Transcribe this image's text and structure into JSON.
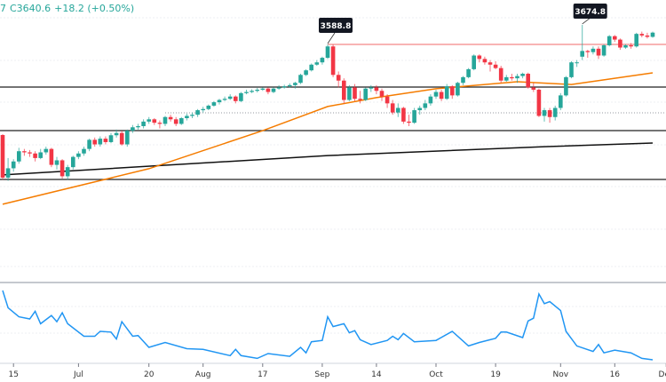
{
  "legend": {
    "prefix": "7",
    "close": "C3640.6",
    "change": "+18.2 (+0.50%)"
  },
  "colors": {
    "up": "#26a69a",
    "down": "#f23645",
    "sma_fast": "#f57c00",
    "sma_slow": "#111111",
    "oscillator": "#2196f3",
    "resistance": "#f06a6a",
    "level": "#222222"
  },
  "chart_data": {
    "type": "candlestick",
    "ylim": [
      2880,
      3700
    ],
    "annotations": [
      {
        "label": "3588.8",
        "index": 60,
        "price": 3588.8
      },
      {
        "label": "3674.8",
        "index": 107,
        "price": 3674.8
      }
    ],
    "x_ticks": [
      {
        "label": "15",
        "index": 2
      },
      {
        "label": "Jul",
        "index": 14
      },
      {
        "label": "20",
        "index": 27
      },
      {
        "label": "Aug",
        "index": 37
      },
      {
        "label": "17",
        "index": 48
      },
      {
        "label": "Sep",
        "index": 59
      },
      {
        "label": "14",
        "index": 69
      },
      {
        "label": "Oct",
        "index": 80
      },
      {
        "label": "19",
        "index": 91
      },
      {
        "label": "Nov",
        "index": 103
      },
      {
        "label": "16",
        "index": 113
      },
      {
        "label": "Dec",
        "index": 122.5
      }
    ],
    "levels": [
      3401.6,
      3210.5,
      2996
    ],
    "resistance": {
      "price": 3588.8,
      "from_index": 60
    },
    "dotted_level": {
      "price": 3288.5,
      "from_index": 30
    },
    "ohlc": [
      [
        3191,
        3195,
        2995,
        3004
      ],
      [
        3004,
        3090,
        2990,
        3045
      ],
      [
        3045,
        3085,
        3030,
        3075
      ],
      [
        3075,
        3135,
        3065,
        3120
      ],
      [
        3120,
        3130,
        3100,
        3115
      ],
      [
        3115,
        3125,
        3095,
        3110
      ],
      [
        3110,
        3120,
        3075,
        3090
      ],
      [
        3090,
        3130,
        3085,
        3115
      ],
      [
        3115,
        3140,
        3105,
        3130
      ],
      [
        3130,
        3135,
        3050,
        3060
      ],
      [
        3060,
        3095,
        3040,
        3080
      ],
      [
        3080,
        3085,
        3000,
        3010
      ],
      [
        3010,
        3060,
        2995,
        3050
      ],
      [
        3050,
        3100,
        3040,
        3095
      ],
      [
        3095,
        3120,
        3085,
        3110
      ],
      [
        3110,
        3140,
        3100,
        3130
      ],
      [
        3130,
        3175,
        3120,
        3170
      ],
      [
        3170,
        3180,
        3140,
        3150
      ],
      [
        3150,
        3185,
        3140,
        3175
      ],
      [
        3175,
        3185,
        3150,
        3160
      ],
      [
        3160,
        3200,
        3155,
        3190
      ],
      [
        3190,
        3215,
        3180,
        3200
      ],
      [
        3200,
        3210,
        3145,
        3150
      ],
      [
        3150,
        3215,
        3140,
        3210
      ],
      [
        3210,
        3235,
        3200,
        3225
      ],
      [
        3225,
        3240,
        3215,
        3230
      ],
      [
        3230,
        3260,
        3220,
        3250
      ],
      [
        3250,
        3270,
        3240,
        3260
      ],
      [
        3260,
        3265,
        3235,
        3245
      ],
      [
        3245,
        3255,
        3220,
        3240
      ],
      [
        3240,
        3275,
        3230,
        3270
      ],
      [
        3270,
        3280,
        3250,
        3260
      ],
      [
        3260,
        3270,
        3230,
        3240
      ],
      [
        3240,
        3270,
        3235,
        3265
      ],
      [
        3265,
        3285,
        3255,
        3275
      ],
      [
        3275,
        3290,
        3265,
        3280
      ],
      [
        3280,
        3305,
        3270,
        3300
      ],
      [
        3300,
        3315,
        3290,
        3305
      ],
      [
        3305,
        3325,
        3300,
        3320
      ],
      [
        3320,
        3340,
        3315,
        3335
      ],
      [
        3335,
        3350,
        3325,
        3345
      ],
      [
        3345,
        3360,
        3340,
        3350
      ],
      [
        3350,
        3370,
        3345,
        3360
      ],
      [
        3360,
        3365,
        3330,
        3340
      ],
      [
        3340,
        3380,
        3335,
        3375
      ],
      [
        3375,
        3390,
        3370,
        3380
      ],
      [
        3380,
        3392,
        3375,
        3385
      ],
      [
        3385,
        3398,
        3378,
        3390
      ],
      [
        3390,
        3400,
        3385,
        3395
      ],
      [
        3395,
        3400,
        3370,
        3380
      ],
      [
        3380,
        3400,
        3375,
        3395
      ],
      [
        3395,
        3410,
        3390,
        3400
      ],
      [
        3400,
        3412,
        3395,
        3405
      ],
      [
        3405,
        3418,
        3400,
        3410
      ],
      [
        3410,
        3425,
        3395,
        3420
      ],
      [
        3420,
        3460,
        3415,
        3455
      ],
      [
        3455,
        3480,
        3450,
        3475
      ],
      [
        3475,
        3505,
        3470,
        3500
      ],
      [
        3500,
        3520,
        3495,
        3510
      ],
      [
        3510,
        3535,
        3500,
        3530
      ],
      [
        3530,
        3588.8,
        3525,
        3580
      ],
      [
        3580,
        3588,
        3445,
        3455
      ],
      [
        3455,
        3470,
        3400,
        3430
      ],
      [
        3430,
        3440,
        3330,
        3345
      ],
      [
        3345,
        3410,
        3340,
        3400
      ],
      [
        3400,
        3415,
        3340,
        3350
      ],
      [
        3350,
        3385,
        3330,
        3345
      ],
      [
        3345,
        3400,
        3340,
        3395
      ],
      [
        3395,
        3410,
        3380,
        3400
      ],
      [
        3400,
        3410,
        3370,
        3385
      ],
      [
        3385,
        3395,
        3340,
        3360
      ],
      [
        3360,
        3370,
        3310,
        3330
      ],
      [
        3330,
        3345,
        3280,
        3290
      ],
      [
        3290,
        3330,
        3270,
        3310
      ],
      [
        3310,
        3315,
        3240,
        3250
      ],
      [
        3250,
        3280,
        3230,
        3245
      ],
      [
        3245,
        3310,
        3240,
        3300
      ],
      [
        3300,
        3320,
        3280,
        3310
      ],
      [
        3310,
        3345,
        3300,
        3330
      ],
      [
        3330,
        3370,
        3320,
        3360
      ],
      [
        3360,
        3390,
        3350,
        3380
      ],
      [
        3380,
        3390,
        3340,
        3350
      ],
      [
        3350,
        3415,
        3345,
        3405
      ],
      [
        3405,
        3410,
        3350,
        3365
      ],
      [
        3365,
        3425,
        3360,
        3420
      ],
      [
        3420,
        3450,
        3410,
        3445
      ],
      [
        3445,
        3485,
        3440,
        3480
      ],
      [
        3480,
        3545,
        3475,
        3540
      ],
      [
        3540,
        3545,
        3510,
        3525
      ],
      [
        3525,
        3535,
        3500,
        3510
      ],
      [
        3510,
        3520,
        3470,
        3500
      ],
      [
        3500,
        3515,
        3480,
        3485
      ],
      [
        3485,
        3495,
        3420,
        3430
      ],
      [
        3430,
        3455,
        3425,
        3445
      ],
      [
        3445,
        3460,
        3430,
        3440
      ],
      [
        3440,
        3460,
        3420,
        3450
      ],
      [
        3450,
        3465,
        3440,
        3460
      ],
      [
        3460,
        3465,
        3395,
        3400
      ],
      [
        3400,
        3420,
        3380,
        3390
      ],
      [
        3390,
        3395,
        3270,
        3275
      ],
      [
        3275,
        3310,
        3250,
        3300
      ],
      [
        3300,
        3310,
        3245,
        3270
      ],
      [
        3270,
        3320,
        3255,
        3310
      ],
      [
        3310,
        3375,
        3300,
        3365
      ],
      [
        3365,
        3450,
        3360,
        3445
      ],
      [
        3445,
        3515,
        3440,
        3510
      ],
      [
        3510,
        3520,
        3490,
        3510
      ],
      [
        3535,
        3674.8,
        3520,
        3560
      ],
      [
        3560,
        3565,
        3530,
        3555
      ],
      [
        3555,
        3580,
        3545,
        3570
      ],
      [
        3570,
        3580,
        3525,
        3540
      ],
      [
        3540,
        3590,
        3535,
        3585
      ],
      [
        3585,
        3630,
        3580,
        3625
      ],
      [
        3625,
        3630,
        3600,
        3610
      ],
      [
        3610,
        3615,
        3565,
        3575
      ],
      [
        3575,
        3590,
        3570,
        3585
      ],
      [
        3585,
        3595,
        3570,
        3580
      ],
      [
        3580,
        3640,
        3575,
        3635
      ],
      [
        3635,
        3645,
        3620,
        3628
      ],
      [
        3628,
        3640,
        3615,
        3622
      ],
      [
        3622,
        3645,
        3618,
        3640.6
      ]
    ],
    "sma_fast": [
      [
        0,
        2887
      ],
      [
        27,
        3043
      ],
      [
        48,
        3210
      ],
      [
        60,
        3316
      ],
      [
        69,
        3355
      ],
      [
        80,
        3394
      ],
      [
        95,
        3425
      ],
      [
        105,
        3413
      ],
      [
        111,
        3433
      ],
      [
        120,
        3464
      ]
    ],
    "sma_slow": [
      [
        0,
        3016
      ],
      [
        60,
        3101
      ],
      [
        100,
        3140
      ],
      [
        120,
        3156
      ]
    ],
    "oscillator": [
      [
        0,
        100
      ],
      [
        1,
        75
      ],
      [
        3,
        62
      ],
      [
        5,
        59
      ],
      [
        6,
        70
      ],
      [
        7,
        52
      ],
      [
        9,
        64
      ],
      [
        10,
        55
      ],
      [
        11,
        68
      ],
      [
        12,
        52
      ],
      [
        15,
        34
      ],
      [
        17,
        34
      ],
      [
        18,
        41
      ],
      [
        20,
        40
      ],
      [
        21,
        30
      ],
      [
        22,
        55
      ],
      [
        24,
        34
      ],
      [
        25,
        35
      ],
      [
        27,
        18
      ],
      [
        30,
        25
      ],
      [
        34,
        16
      ],
      [
        37,
        15
      ],
      [
        42,
        6
      ],
      [
        43,
        15
      ],
      [
        44,
        6
      ],
      [
        47,
        2
      ],
      [
        49,
        9
      ],
      [
        53,
        5
      ],
      [
        55,
        18
      ],
      [
        56,
        10
      ],
      [
        57,
        26
      ],
      [
        59,
        28
      ],
      [
        60,
        62
      ],
      [
        61,
        48
      ],
      [
        63,
        52
      ],
      [
        64,
        39
      ],
      [
        65,
        42
      ],
      [
        66,
        29
      ],
      [
        68,
        22
      ],
      [
        71,
        28
      ],
      [
        72,
        34
      ],
      [
        73,
        29
      ],
      [
        74,
        38
      ],
      [
        76,
        26
      ],
      [
        80,
        28
      ],
      [
        83,
        41
      ],
      [
        86,
        20
      ],
      [
        88,
        25
      ],
      [
        91,
        31
      ],
      [
        92,
        40
      ],
      [
        93,
        40
      ],
      [
        96,
        32
      ],
      [
        97,
        56
      ],
      [
        98,
        60
      ],
      [
        99,
        95
      ],
      [
        100,
        81
      ],
      [
        101,
        84
      ],
      [
        103,
        71
      ],
      [
        104,
        41
      ],
      [
        106,
        20
      ],
      [
        109,
        12
      ],
      [
        110,
        22
      ],
      [
        111,
        10
      ],
      [
        113,
        14
      ],
      [
        116,
        10
      ],
      [
        118,
        2
      ],
      [
        120,
        0
      ]
    ]
  }
}
